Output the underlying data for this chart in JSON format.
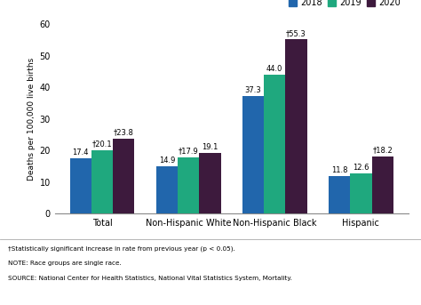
{
  "categories": [
    "Total",
    "Non-Hispanic White",
    "Non-Hispanic Black",
    "Hispanic"
  ],
  "years": [
    "2018",
    "2019",
    "2020"
  ],
  "values": {
    "2018": [
      17.4,
      14.9,
      37.3,
      11.8
    ],
    "2019": [
      20.1,
      17.9,
      44.0,
      12.6
    ],
    "2020": [
      23.8,
      19.1,
      55.3,
      18.2
    ]
  },
  "dagger_2019": [
    true,
    true,
    false,
    false
  ],
  "dagger_2020": [
    true,
    false,
    true,
    true
  ],
  "bar_colors": [
    "#2166ac",
    "#1fa87e",
    "#3d1a3d"
  ],
  "ylabel": "Deaths per 100,000 live births",
  "ylim": [
    0,
    60
  ],
  "yticks": [
    0,
    10,
    20,
    30,
    40,
    50,
    60
  ],
  "legend_labels": [
    "2018",
    "2019",
    "2020"
  ],
  "footnote1": "†Statistically significant increase in rate from previous year (p < 0.05).",
  "footnote2": "NOTE: Race groups are single race.",
  "footnote3": "SOURCE: National Center for Health Statistics, National Vital Statistics System, Mortality.",
  "background_color": "#ffffff"
}
